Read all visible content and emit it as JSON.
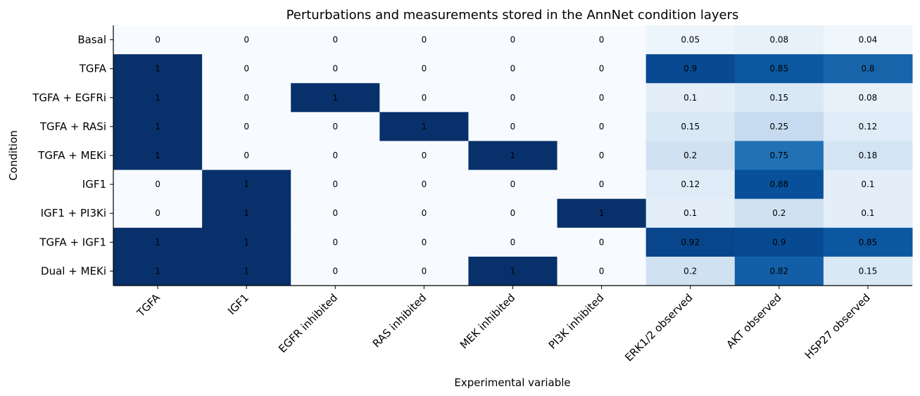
{
  "chart_data": {
    "type": "heatmap",
    "title": "Perturbations and measurements stored in the AnnNet condition layers",
    "xlabel": "Experimental variable",
    "ylabel": "Condition",
    "columns": [
      "TGFA",
      "IGF1",
      "EGFR inhibited",
      "RAS inhibited",
      "MEK inhibited",
      "PI3K inhibited",
      "ERK1/2 observed",
      "AKT observed",
      "HSP27 observed"
    ],
    "rows": [
      "Basal",
      "TGFA",
      "TGFA + EGFRi",
      "TGFA + RASi",
      "TGFA + MEKi",
      "IGF1",
      "IGF1 + PI3Ki",
      "TGFA + IGF1",
      "Dual + MEKi"
    ],
    "values": [
      [
        0,
        0,
        0,
        0,
        0,
        0,
        0.05,
        0.08,
        0.04
      ],
      [
        1,
        0,
        0,
        0,
        0,
        0,
        0.9,
        0.85,
        0.8
      ],
      [
        1,
        0,
        1,
        0,
        0,
        0,
        0.1,
        0.15,
        0.08
      ],
      [
        1,
        0,
        0,
        1,
        0,
        0,
        0.15,
        0.25,
        0.12
      ],
      [
        1,
        0,
        0,
        0,
        1,
        0,
        0.2,
        0.75,
        0.18
      ],
      [
        0,
        1,
        0,
        0,
        0,
        0,
        0.12,
        0.88,
        0.1
      ],
      [
        0,
        1,
        0,
        0,
        0,
        1,
        0.1,
        0.2,
        0.1
      ],
      [
        1,
        1,
        0,
        0,
        0,
        0,
        0.92,
        0.9,
        0.85
      ],
      [
        1,
        1,
        0,
        0,
        1,
        0,
        0.2,
        0.82,
        0.15
      ]
    ],
    "value_range": [
      0,
      1
    ],
    "colormap": "Blues",
    "colors": {
      "low": "#f7fbff",
      "high": "#08306b"
    },
    "grid": false
  }
}
